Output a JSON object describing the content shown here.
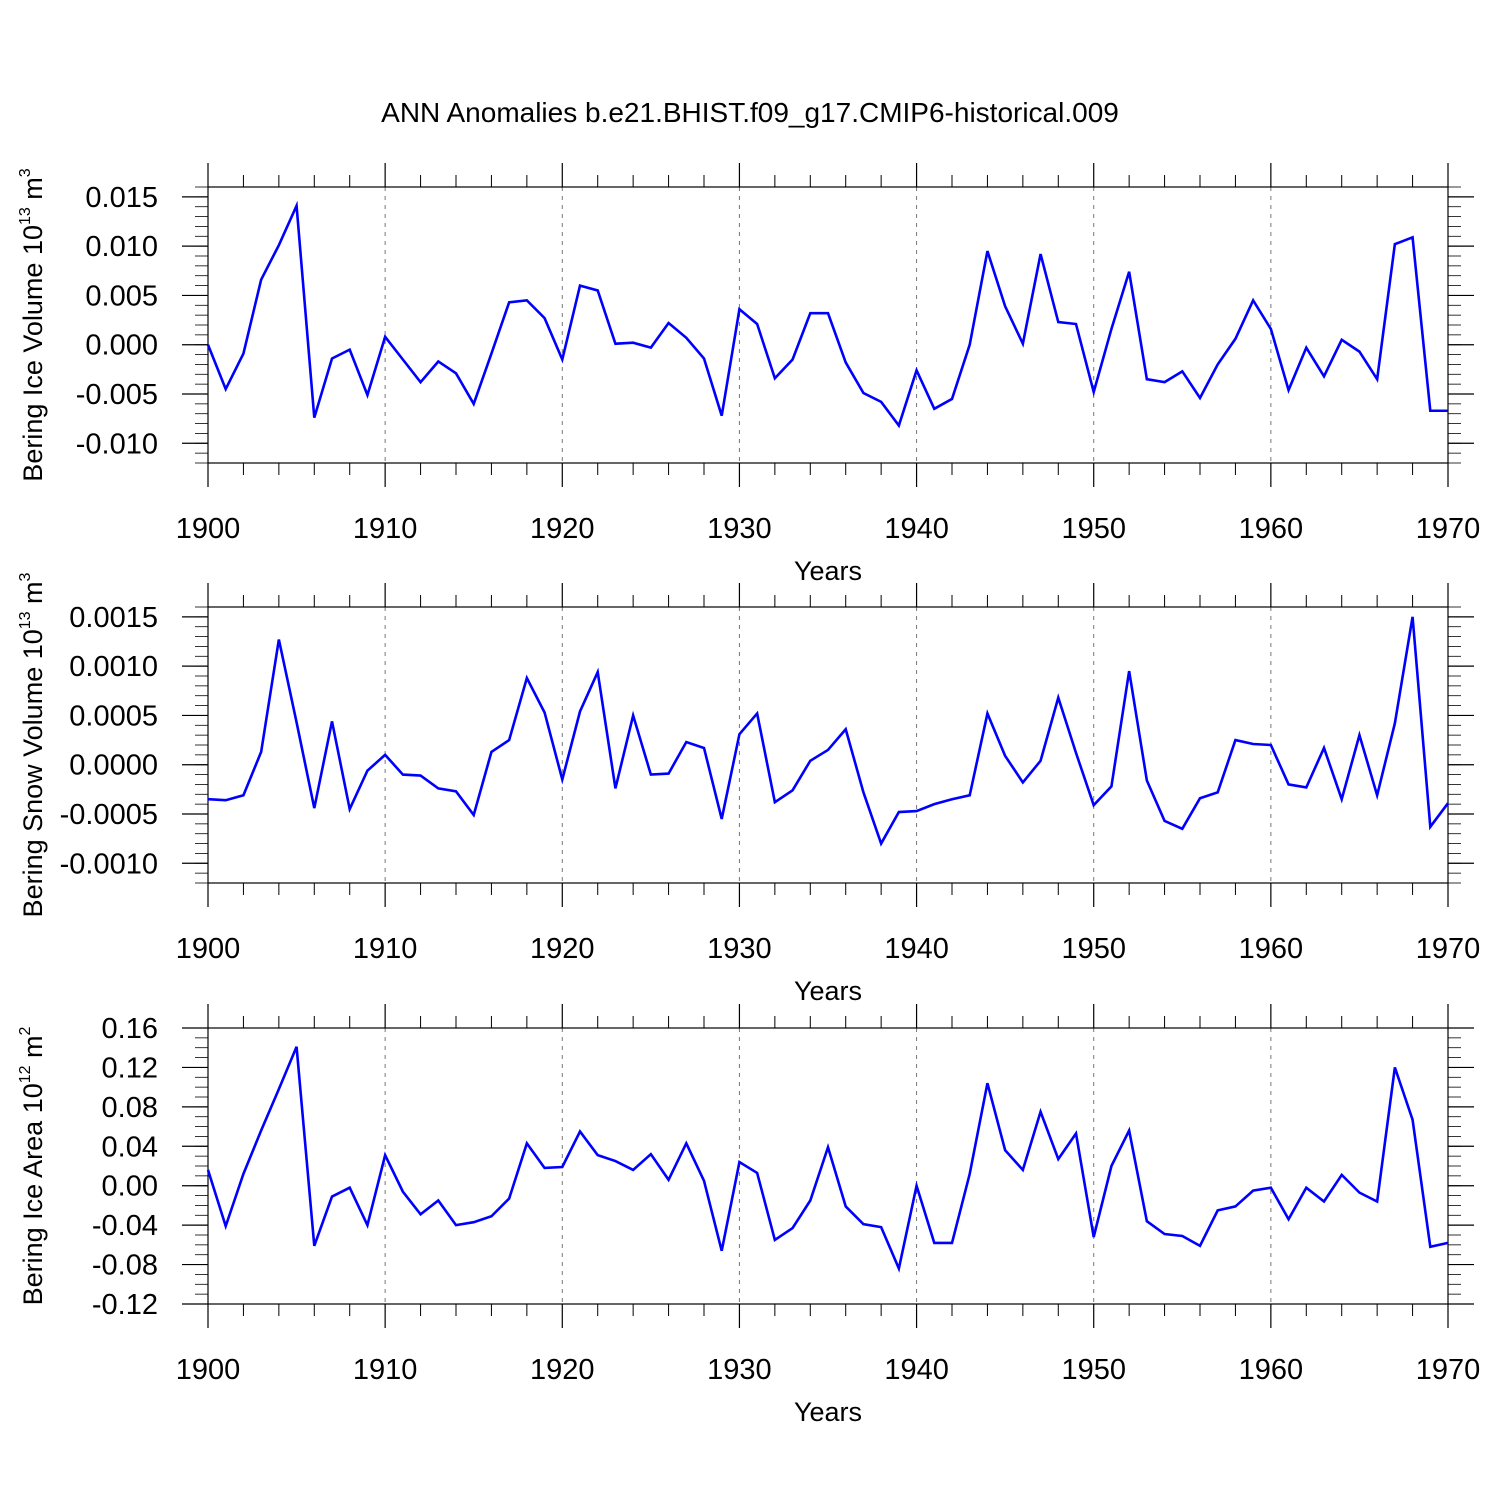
{
  "figure": {
    "title": "ANN Anomalies b.e21.BHIST.f09_g17.CMIP6-historical.009",
    "line_color": "#0000ff",
    "axis_color": "#000000",
    "grid_color": "#777777"
  },
  "chart_data": [
    {
      "type": "line",
      "title": "",
      "xlabel": "Years",
      "ylabel": {
        "text": "Bering Ice Volume 10",
        "exp": "13",
        "unit": "m",
        "unit_exp": "3"
      },
      "xlim": [
        1900,
        1970
      ],
      "ylim": [
        -0.012,
        0.016
      ],
      "x_ticks": [
        1900,
        1910,
        1920,
        1930,
        1940,
        1950,
        1960,
        1970
      ],
      "x_tick_labels": [
        "1900",
        "1910",
        "1920",
        "1930",
        "1940",
        "1950",
        "1960",
        "1970"
      ],
      "y_ticks": [
        -0.01,
        -0.005,
        0.0,
        0.005,
        0.01,
        0.015
      ],
      "y_tick_labels": [
        "-0.010",
        "-0.005",
        "0.000",
        "0.005",
        "0.010",
        "0.015"
      ],
      "y_minor_step": 0.001,
      "grid": "vertical dashed at major x ticks",
      "series": [
        {
          "name": "Bering Ice Volume",
          "x": [
            1900,
            1901,
            1902,
            1903,
            1904,
            1905,
            1906,
            1907,
            1908,
            1909,
            1910,
            1911,
            1912,
            1913,
            1914,
            1915,
            1916,
            1917,
            1918,
            1919,
            1920,
            1921,
            1922,
            1923,
            1924,
            1925,
            1926,
            1927,
            1928,
            1929,
            1930,
            1931,
            1932,
            1933,
            1934,
            1935,
            1936,
            1937,
            1938,
            1939,
            1940,
            1941,
            1942,
            1943,
            1944,
            1945,
            1946,
            1947,
            1948,
            1949,
            1950,
            1951,
            1952,
            1953,
            1954,
            1955,
            1956,
            1957,
            1958,
            1959,
            1960,
            1961,
            1962,
            1963,
            1964,
            1965,
            1966,
            1967,
            1968,
            1969,
            1970
          ],
          "values": [
            0.0,
            -0.0045,
            -0.0009,
            0.0066,
            0.0101,
            0.0141,
            -0.0074,
            -0.0014,
            -0.0005,
            -0.0051,
            0.0008,
            -0.0015,
            -0.0038,
            -0.0017,
            -0.0029,
            -0.006,
            -0.0009,
            0.0043,
            0.0045,
            0.0027,
            -0.0015,
            0.006,
            0.0055,
            0.0001,
            0.0002,
            -0.0003,
            0.0022,
            0.0007,
            -0.0014,
            -0.0072,
            0.0036,
            0.0021,
            -0.0034,
            -0.0015,
            0.0032,
            0.0032,
            -0.0018,
            -0.0049,
            -0.0058,
            -0.0082,
            -0.0026,
            -0.0065,
            -0.0055,
            0.0,
            0.0095,
            0.0039,
            0.0001,
            0.0092,
            0.0023,
            0.0021,
            -0.0048,
            0.0016,
            0.0074,
            -0.0035,
            -0.0038,
            -0.0027,
            -0.0054,
            -0.002,
            0.0006,
            0.0045,
            0.0016,
            -0.0046,
            -0.0003,
            -0.0032,
            0.0005,
            -0.0007,
            -0.0035,
            0.0102,
            0.0109,
            -0.0067,
            -0.0067
          ]
        }
      ]
    },
    {
      "type": "line",
      "title": "",
      "xlabel": "Years",
      "ylabel": {
        "text": "Bering Snow Volume 10",
        "exp": "13",
        "unit": "m",
        "unit_exp": "3"
      },
      "xlim": [
        1900,
        1970
      ],
      "ylim": [
        -0.0012,
        0.0016
      ],
      "x_ticks": [
        1900,
        1910,
        1920,
        1930,
        1940,
        1950,
        1960,
        1970
      ],
      "x_tick_labels": [
        "1900",
        "1910",
        "1920",
        "1930",
        "1940",
        "1950",
        "1960",
        "1970"
      ],
      "y_ticks": [
        -0.001,
        -0.0005,
        0.0,
        0.0005,
        0.001,
        0.0015
      ],
      "y_tick_labels": [
        "-0.0010",
        "-0.0005",
        "0.0000",
        "0.0005",
        "0.0010",
        "0.0015"
      ],
      "y_minor_step": 0.0001,
      "grid": "vertical dashed at major x ticks",
      "series": [
        {
          "name": "Bering Snow Volume",
          "x": [
            1900,
            1901,
            1902,
            1903,
            1904,
            1905,
            1906,
            1907,
            1908,
            1909,
            1910,
            1911,
            1912,
            1913,
            1914,
            1915,
            1916,
            1917,
            1918,
            1919,
            1920,
            1921,
            1922,
            1923,
            1924,
            1925,
            1926,
            1927,
            1928,
            1929,
            1930,
            1931,
            1932,
            1933,
            1934,
            1935,
            1936,
            1937,
            1938,
            1939,
            1940,
            1941,
            1942,
            1943,
            1944,
            1945,
            1946,
            1947,
            1948,
            1949,
            1950,
            1951,
            1952,
            1953,
            1954,
            1955,
            1956,
            1957,
            1958,
            1959,
            1960,
            1961,
            1962,
            1963,
            1964,
            1965,
            1966,
            1967,
            1968,
            1969,
            1970
          ],
          "values": [
            -0.00035,
            -0.00036,
            -0.00031,
            0.00013,
            0.00127,
            0.00043,
            -0.00044,
            0.00044,
            -0.00045,
            -6e-05,
            0.0001,
            -0.0001,
            -0.00011,
            -0.00024,
            -0.00027,
            -0.00051,
            0.00013,
            0.00025,
            0.00088,
            0.00053,
            -0.00015,
            0.00054,
            0.00094,
            -0.00024,
            0.0005,
            -0.0001,
            -9e-05,
            0.00023,
            0.00017,
            -0.00055,
            0.00031,
            0.00052,
            -0.00038,
            -0.00026,
            4e-05,
            0.00015,
            0.00036,
            -0.00028,
            -0.0008,
            -0.00048,
            -0.00047,
            -0.0004,
            -0.00035,
            -0.00031,
            0.00052,
            9e-05,
            -0.00018,
            4e-05,
            0.00068,
            0.00012,
            -0.00041,
            -0.00022,
            0.00095,
            -0.00016,
            -0.00057,
            -0.00065,
            -0.00034,
            -0.00028,
            0.00025,
            0.00021,
            0.0002,
            -0.0002,
            -0.00023,
            0.00017,
            -0.00035,
            0.0003,
            -0.00031,
            0.00042,
            0.0015,
            -0.00063,
            -0.00039
          ]
        }
      ]
    },
    {
      "type": "line",
      "title": "",
      "xlabel": "Years",
      "ylabel": {
        "text": "Bering Ice Area 10",
        "exp": "12",
        "unit": "m",
        "unit_exp": "2"
      },
      "xlim": [
        1900,
        1970
      ],
      "ylim": [
        -0.12,
        0.16
      ],
      "x_ticks": [
        1900,
        1910,
        1920,
        1930,
        1940,
        1950,
        1960,
        1970
      ],
      "x_tick_labels": [
        "1900",
        "1910",
        "1920",
        "1930",
        "1940",
        "1950",
        "1960",
        "1970"
      ],
      "y_ticks": [
        -0.12,
        -0.08,
        -0.04,
        0.0,
        0.04,
        0.08,
        0.12,
        0.16
      ],
      "y_tick_labels": [
        "-0.12",
        "-0.08",
        "-0.04",
        "0.00",
        "0.04",
        "0.08",
        "0.12",
        "0.16"
      ],
      "y_minor_step": 0.01,
      "grid": "vertical dashed at major x ticks",
      "series": [
        {
          "name": "Bering Ice Area",
          "x": [
            1900,
            1901,
            1902,
            1903,
            1904,
            1905,
            1906,
            1907,
            1908,
            1909,
            1910,
            1911,
            1912,
            1913,
            1914,
            1915,
            1916,
            1917,
            1918,
            1919,
            1920,
            1921,
            1922,
            1923,
            1924,
            1925,
            1926,
            1927,
            1928,
            1929,
            1930,
            1931,
            1932,
            1933,
            1934,
            1935,
            1936,
            1937,
            1938,
            1939,
            1940,
            1941,
            1942,
            1943,
            1944,
            1945,
            1946,
            1947,
            1948,
            1949,
            1950,
            1951,
            1952,
            1953,
            1954,
            1955,
            1956,
            1957,
            1958,
            1959,
            1960,
            1961,
            1962,
            1963,
            1964,
            1965,
            1966,
            1967,
            1968,
            1969,
            1970
          ],
          "values": [
            0.016,
            -0.041,
            0.012,
            0.056,
            0.098,
            0.141,
            -0.061,
            -0.011,
            -0.002,
            -0.04,
            0.031,
            -0.006,
            -0.029,
            -0.015,
            -0.04,
            -0.037,
            -0.031,
            -0.013,
            0.043,
            0.018,
            0.019,
            0.055,
            0.031,
            0.025,
            0.016,
            0.032,
            0.006,
            0.043,
            0.005,
            -0.066,
            0.024,
            0.013,
            -0.055,
            -0.043,
            -0.015,
            0.039,
            -0.021,
            -0.039,
            -0.042,
            -0.084,
            0.0,
            -0.058,
            -0.058,
            0.012,
            0.104,
            0.036,
            0.016,
            0.075,
            0.027,
            0.053,
            -0.052,
            0.02,
            0.056,
            -0.036,
            -0.049,
            -0.051,
            -0.061,
            -0.025,
            -0.021,
            -0.005,
            -0.002,
            -0.034,
            -0.002,
            -0.016,
            0.011,
            -0.007,
            -0.016,
            0.12,
            0.067,
            -0.062,
            -0.058
          ]
        }
      ]
    }
  ]
}
